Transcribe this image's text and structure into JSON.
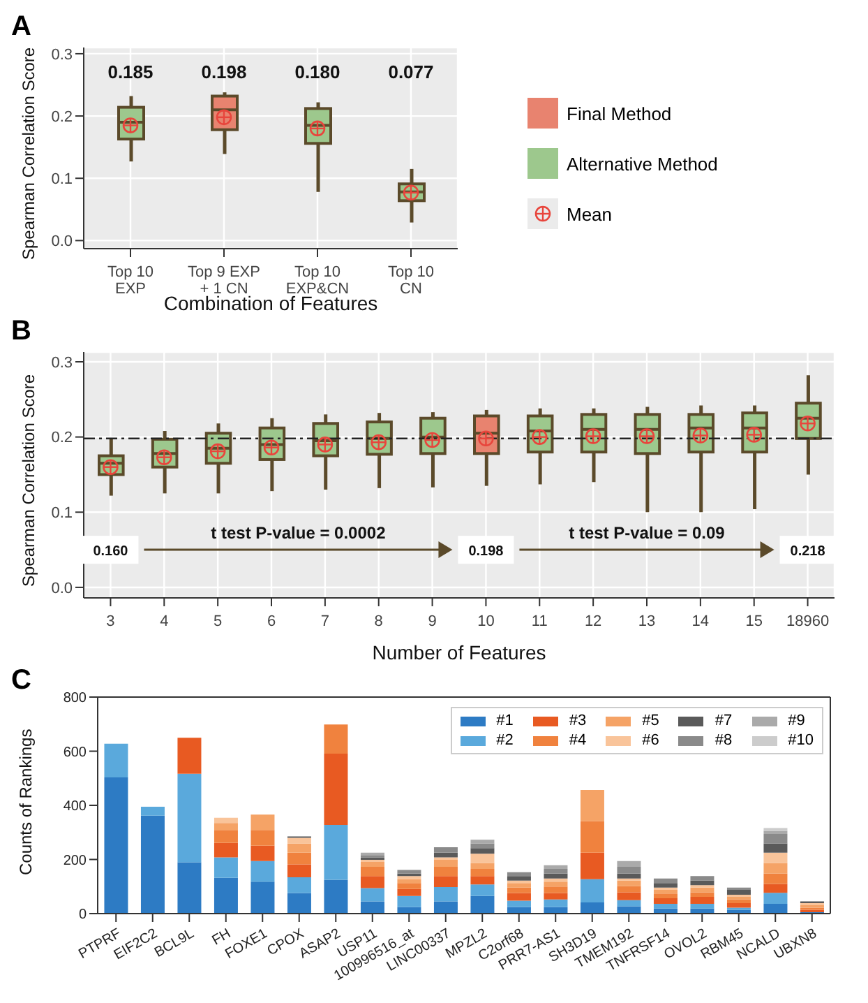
{
  "chart_data": [
    {
      "type": "box",
      "title": "A",
      "xlabel": "Combination of Features",
      "ylabel": "Spearman Correlation Score",
      "categories": [
        "Top 10\nEXP",
        "Top 9 EXP\n+ 1 CN",
        "Top 10\nEXP&CN",
        "Top 10\nCN"
      ],
      "ylim": [
        -0.013,
        0.31
      ],
      "yticks": [
        {
          "value": 0,
          "label": "0.0"
        },
        {
          "value": 0.1,
          "label": "0.1"
        },
        {
          "value": 0.2,
          "label": "0.2"
        },
        {
          "value": 0.3,
          "label": "0.3"
        }
      ],
      "grid": true,
      "legend": "right",
      "annotations": [
        "0.185",
        "0.198",
        "0.180",
        "0.077"
      ],
      "series": [
        {
          "name": "Final Method",
          "color": "#e8836f",
          "boxes": [
            null,
            {
              "low": 0.139,
              "q1": 0.178,
              "median": 0.21,
              "q3": 0.232,
              "high": 0.238
            },
            null,
            null
          ]
        },
        {
          "name": "Alternative Method",
          "color": "#9dc88d",
          "boxes": [
            {
              "low": 0.127,
              "q1": 0.163,
              "median": 0.19,
              "q3": 0.214,
              "high": 0.232
            },
            null,
            {
              "low": 0.078,
              "q1": 0.156,
              "median": 0.185,
              "q3": 0.212,
              "high": 0.222
            },
            {
              "low": 0.029,
              "q1": 0.064,
              "median": 0.078,
              "q3": 0.091,
              "high": 0.115
            }
          ]
        },
        {
          "name": "Mean",
          "type": "scatter",
          "color": "#e8453c",
          "marker": "circle",
          "values": [
            0.185,
            0.198,
            0.18,
            0.077
          ]
        }
      ]
    },
    {
      "type": "box",
      "title": "B",
      "xlabel": "Number of Features",
      "ylabel": "Spearman Correlation Score",
      "categories": [
        "3",
        "4",
        "5",
        "6",
        "7",
        "8",
        "9",
        "10",
        "11",
        "12",
        "13",
        "14",
        "15",
        "18960"
      ],
      "ylim": [
        -0.014,
        0.313
      ],
      "yticks": [
        {
          "value": 0,
          "label": "0.0"
        },
        {
          "value": 0.1,
          "label": "0.1"
        },
        {
          "value": 0.2,
          "label": "0.2"
        },
        {
          "value": 0.3,
          "label": "0.3"
        }
      ],
      "grid": true,
      "ref_lines": [
        {
          "axis": "y",
          "value": 0.198,
          "line_style": "dashed",
          "color": "#222222"
        }
      ],
      "annotations": [
        {
          "text": "0.160",
          "x": "3",
          "y": 0.05
        },
        "t test P-value = 0.0002",
        {
          "text": "0.198",
          "x": "10",
          "y": 0.05
        },
        "t test P-value = 0.09",
        {
          "text": "0.218",
          "x": "18960",
          "y": 0.05
        }
      ],
      "series": [
        {
          "color": "#9dc88d",
          "boxes": [
            {
              "low": 0.122,
              "q1": 0.15,
              "median": 0.165,
              "q3": 0.175,
              "high": 0.198
            },
            {
              "low": 0.125,
              "q1": 0.16,
              "median": 0.178,
              "q3": 0.197,
              "high": 0.208
            },
            {
              "low": 0.125,
              "q1": 0.165,
              "median": 0.185,
              "q3": 0.205,
              "high": 0.218
            },
            {
              "low": 0.128,
              "q1": 0.17,
              "median": 0.19,
              "q3": 0.212,
              "high": 0.225
            },
            {
              "low": 0.13,
              "q1": 0.175,
              "median": 0.195,
              "q3": 0.218,
              "high": 0.23
            },
            {
              "low": 0.132,
              "q1": 0.177,
              "median": 0.198,
              "q3": 0.22,
              "high": 0.232
            },
            {
              "low": 0.133,
              "q1": 0.178,
              "median": 0.2,
              "q3": 0.225,
              "high": 0.233
            },
            null,
            {
              "low": 0.137,
              "q1": 0.18,
              "median": 0.208,
              "q3": 0.228,
              "high": 0.238
            },
            {
              "low": 0.14,
              "q1": 0.18,
              "median": 0.21,
              "q3": 0.23,
              "high": 0.238
            },
            {
              "low": 0.1,
              "q1": 0.178,
              "median": 0.21,
              "q3": 0.23,
              "high": 0.24
            },
            {
              "low": 0.1,
              "q1": 0.18,
              "median": 0.212,
              "q3": 0.23,
              "high": 0.242
            },
            {
              "low": 0.104,
              "q1": 0.18,
              "median": 0.212,
              "q3": 0.232,
              "high": 0.242
            },
            {
              "low": 0.15,
              "q1": 0.198,
              "median": 0.225,
              "q3": 0.245,
              "high": 0.282
            }
          ]
        },
        {
          "color": "#e8836f",
          "boxes": [
            null,
            null,
            null,
            null,
            null,
            null,
            null,
            {
              "low": 0.135,
              "q1": 0.178,
              "median": 0.205,
              "q3": 0.228,
              "high": 0.236
            },
            null,
            null,
            null,
            null,
            null,
            null
          ]
        },
        {
          "type": "scatter",
          "color": "#e8453c",
          "marker": "circle",
          "values": [
            0.16,
            0.173,
            0.181,
            0.186,
            0.19,
            0.193,
            0.196,
            0.198,
            0.2,
            0.201,
            0.201,
            0.202,
            0.203,
            0.218
          ]
        }
      ]
    },
    {
      "type": "bar",
      "title": "C",
      "ylabel": "Counts of Rankings",
      "stacked": true,
      "legend": "top right",
      "categories": [
        "PTPRF",
        "EIF2C2",
        "BCL9L",
        "FH",
        "FOXE1",
        "CPOX",
        "ASAP2",
        "USP11",
        "100996516_at",
        "LINC00337",
        "MPZL2",
        "C2orf68",
        "PRR7-AS1",
        "SH3D19",
        "TMEM192",
        "TNFRSF14",
        "OVOL2",
        "RBM45",
        "NCALD",
        "UBXN8"
      ],
      "ylim": [
        0,
        800
      ],
      "yticks": [
        0,
        200,
        400,
        600,
        800
      ],
      "series": [
        {
          "name": "#1",
          "color": "#2d7bc4",
          "values": [
            503,
            362,
            190,
            132,
            118,
            76,
            125,
            45,
            24,
            45,
            65,
            24,
            24,
            41,
            27,
            19,
            19,
            14,
            36,
            5
          ]
        },
        {
          "name": "#2",
          "color": "#5aa9dc",
          "values": [
            125,
            33,
            327,
            76,
            76,
            58,
            203,
            49,
            41,
            53,
            43,
            24,
            28,
            86,
            23,
            17,
            17,
            8,
            41,
            0
          ]
        },
        {
          "name": "#3",
          "color": "#e85a22",
          "values": [
            0,
            0,
            133,
            53,
            57,
            48,
            263,
            45,
            26,
            41,
            31,
            28,
            24,
            98,
            29,
            21,
            26,
            17,
            33,
            9
          ]
        },
        {
          "name": "#4",
          "color": "#f0823e",
          "values": [
            0,
            0,
            0,
            48,
            58,
            43,
            108,
            34,
            22,
            34,
            26,
            20,
            24,
            117,
            22,
            17,
            17,
            14,
            38,
            8
          ]
        },
        {
          "name": "#5",
          "color": "#f5a366",
          "values": [
            0,
            0,
            0,
            26,
            57,
            34,
            0,
            18,
            14,
            26,
            22,
            17,
            18,
            115,
            21,
            14,
            17,
            9,
            39,
            9
          ]
        },
        {
          "name": "#6",
          "color": "#f9c49a",
          "values": [
            0,
            0,
            0,
            19,
            0,
            21,
            0,
            8,
            12,
            9,
            34,
            9,
            12,
            0,
            8,
            8,
            9,
            8,
            38,
            8
          ]
        },
        {
          "name": "#7",
          "color": "#5a5a5a",
          "values": [
            0,
            0,
            0,
            0,
            0,
            5,
            0,
            9,
            9,
            17,
            21,
            17,
            18,
            0,
            18,
            17,
            17,
            18,
            34,
            6
          ]
        },
        {
          "name": "#8",
          "color": "#8a8a8a",
          "values": [
            0,
            0,
            0,
            0,
            0,
            0,
            0,
            8,
            13,
            20,
            17,
            14,
            17,
            0,
            25,
            17,
            17,
            8,
            35,
            0
          ]
        },
        {
          "name": "#9",
          "color": "#aaaaaa",
          "values": [
            0,
            0,
            0,
            0,
            0,
            0,
            0,
            9,
            0,
            0,
            14,
            0,
            14,
            0,
            21,
            0,
            0,
            0,
            12,
            0
          ]
        },
        {
          "name": "#10",
          "color": "#cccccc",
          "values": [
            0,
            0,
            0,
            0,
            0,
            0,
            0,
            0,
            0,
            0,
            0,
            0,
            0,
            0,
            0,
            0,
            0,
            0,
            10,
            0
          ]
        }
      ]
    }
  ]
}
